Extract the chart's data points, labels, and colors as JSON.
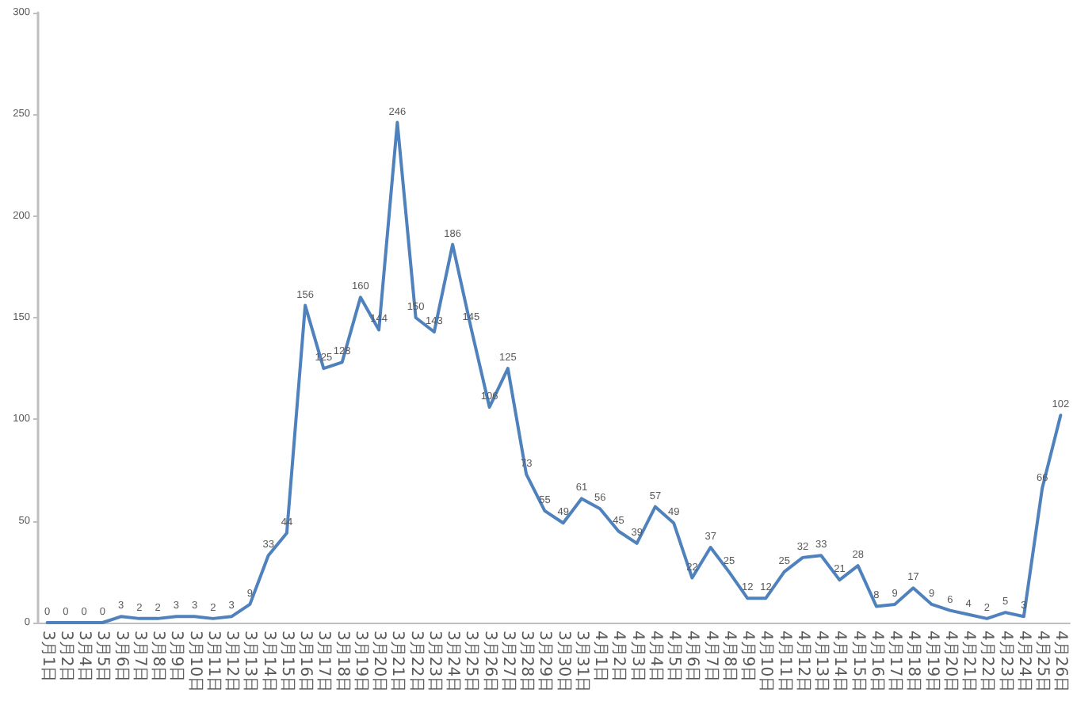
{
  "chart_data": {
    "type": "line",
    "categories": [
      "3月1日",
      "3月2日",
      "3月4日",
      "3月5日",
      "3月6日",
      "3月7日",
      "3月8日",
      "3月9日",
      "3月10日",
      "3月11日",
      "3月12日",
      "3月13日",
      "3月14日",
      "3月15日",
      "3月16日",
      "3月17日",
      "3月18日",
      "3月19日",
      "3月20日",
      "3月21日",
      "3月22日",
      "3月23日",
      "3月24日",
      "3月25日",
      "3月26日",
      "3月27日",
      "3月28日",
      "3月29日",
      "3月30日",
      "3月31日",
      "4月1日",
      "4月2日",
      "4月3日",
      "4月4日",
      "4月5日",
      "4月6日",
      "4月7日",
      "4月8日",
      "4月9日",
      "4月10日",
      "4月11日",
      "4月12日",
      "4月13日",
      "4月14日",
      "4月15日",
      "4月16日",
      "4月17日",
      "4月18日",
      "4月19日",
      "4月20日",
      "4月21日",
      "4月22日",
      "4月23日",
      "4月24日",
      "4月25日",
      "4月26日"
    ],
    "values": [
      0,
      0,
      0,
      0,
      3,
      2,
      2,
      3,
      3,
      2,
      3,
      9,
      33,
      44,
      156,
      125,
      128,
      160,
      144,
      246,
      150,
      143,
      186,
      145,
      106,
      125,
      73,
      55,
      49,
      61,
      56,
      45,
      39,
      57,
      49,
      22,
      37,
      25,
      12,
      12,
      25,
      32,
      33,
      21,
      28,
      8,
      9,
      17,
      9,
      6,
      4,
      2,
      5,
      3,
      66,
      102
    ],
    "color": "#4f81bd",
    "ylim": [
      0,
      300
    ],
    "yticks": [
      0,
      50,
      100,
      150,
      200,
      250,
      300
    ],
    "data_labels": true,
    "marker": "none"
  }
}
